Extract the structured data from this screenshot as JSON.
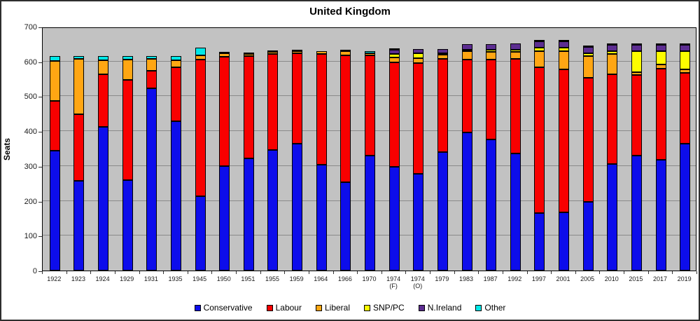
{
  "chart_data": {
    "type": "bar",
    "stacked": true,
    "title": "United Kingdom",
    "ylabel": "Seats",
    "xlabel": "",
    "ylim": [
      0,
      700
    ],
    "yticks": [
      0,
      100,
      200,
      300,
      400,
      500,
      600,
      700
    ],
    "grid": true,
    "legend_position": "bottom",
    "plot_bg_color": "#c2c2c2",
    "grid_color": "#8a8a8a",
    "categories": [
      "1922",
      "1923",
      "1924",
      "1929",
      "1931",
      "1935",
      "1945",
      "1950",
      "1951",
      "1955",
      "1959",
      "1964",
      "1966",
      "1970",
      "1974\n(F)",
      "1974\n(O)",
      "1979",
      "1983",
      "1987",
      "1992",
      "1997",
      "2001",
      "2005",
      "2010",
      "2015",
      "2017",
      "2019"
    ],
    "series": [
      {
        "name": "Conservative",
        "color": "#0d0deb",
        "values": [
          344,
          258,
          412,
          260,
          522,
          429,
          213,
          299,
          321,
          345,
          365,
          304,
          253,
          330,
          297,
          277,
          339,
          397,
          376,
          336,
          165,
          166,
          198,
          306,
          330,
          317,
          365
        ]
      },
      {
        "name": "Labour",
        "color": "#f80000",
        "values": [
          142,
          191,
          151,
          287,
          52,
          154,
          393,
          315,
          295,
          277,
          258,
          317,
          364,
          288,
          301,
          319,
          269,
          209,
          229,
          271,
          418,
          412,
          355,
          258,
          232,
          262,
          202
        ]
      },
      {
        "name": "Liberal",
        "color": "#ffa613",
        "values": [
          116,
          158,
          40,
          59,
          33,
          21,
          12,
          9,
          6,
          6,
          6,
          9,
          12,
          6,
          14,
          13,
          11,
          23,
          22,
          20,
          46,
          52,
          62,
          57,
          8,
          12,
          11
        ]
      },
      {
        "name": "SNP/PC",
        "color": "#fdfd00",
        "values": [
          0,
          0,
          0,
          0,
          0,
          0,
          0,
          0,
          0,
          0,
          0,
          0,
          0,
          0,
          9,
          14,
          4,
          4,
          6,
          7,
          10,
          9,
          9,
          9,
          59,
          39,
          52
        ]
      },
      {
        "name": "N.Ireland",
        "color": "#5c2d91",
        "values": [
          0,
          0,
          0,
          0,
          0,
          0,
          0,
          0,
          0,
          0,
          0,
          0,
          0,
          0,
          12,
          12,
          12,
          17,
          17,
          17,
          18,
          18,
          18,
          18,
          18,
          18,
          18
        ]
      },
      {
        "name": "Other",
        "color": "#00e8e8",
        "values": [
          13,
          8,
          12,
          9,
          8,
          11,
          22,
          2,
          3,
          2,
          1,
          0,
          1,
          6,
          2,
          0,
          0,
          0,
          0,
          0,
          2,
          2,
          4,
          2,
          3,
          2,
          2
        ]
      }
    ]
  }
}
